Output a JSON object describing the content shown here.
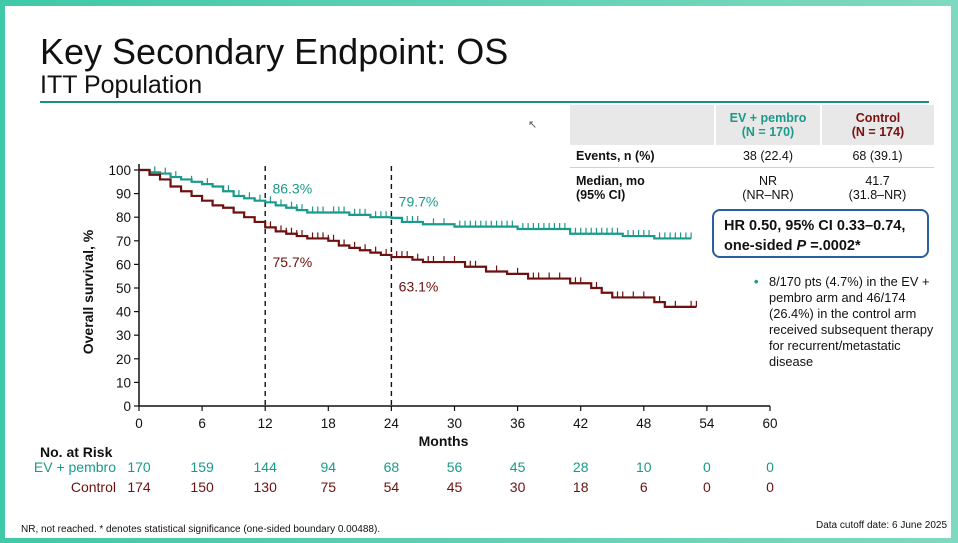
{
  "slide": {
    "title": "Key Secondary Endpoint: OS",
    "subtitle": "ITT Population",
    "cursor_icon": "cursor-arrow-icon",
    "footnote": "NR, not reached. * denotes statistical significance (one-sided boundary 0.00488).",
    "cutoff": "Data cutoff date: 6 June 2025"
  },
  "stats_table": {
    "headers": [
      "",
      "EV + pembro\n(N = 170)",
      "Control\n(N = 174)"
    ],
    "rows": [
      {
        "label": "Events, n (%)",
        "ev": "38 (22.4)",
        "control": "68 (39.1)"
      },
      {
        "label": "Median, mo\n(95% CI)",
        "ev": "NR\n(NR–NR)",
        "control": "41.7\n(31.8–NR)"
      }
    ]
  },
  "hr_box": {
    "line1": "HR 0.50, 95% CI 0.33–0.74,",
    "line2_prefix": "one-sided ",
    "line2_p": "P",
    "line2_suffix": " =.0002*"
  },
  "note": {
    "bullet": "•",
    "text": "8/170 pts (4.7%) in the EV + pembro arm and 46/174 (26.4%) in the control arm received subsequent therapy for recurrent/metastatic disease"
  },
  "colors": {
    "ev": "#1a9a8a",
    "control": "#6e1010",
    "rule": "#1a8f7f",
    "hr_border": "#2a5fa0"
  },
  "chart_data": {
    "type": "line",
    "title": "",
    "xlabel": "Months",
    "ylabel": "Overall survival, %",
    "xlim": [
      0,
      60
    ],
    "ylim": [
      0,
      100
    ],
    "xticks": [
      0,
      6,
      12,
      18,
      24,
      30,
      36,
      42,
      48,
      54,
      60
    ],
    "yticks": [
      0,
      10,
      20,
      30,
      40,
      50,
      60,
      70,
      80,
      90,
      100
    ],
    "reference_lines": [
      12,
      24
    ],
    "annotations": [
      {
        "text": "86.3%",
        "series": "EV + pembro",
        "x": 12.5,
        "y": 90
      },
      {
        "text": "79.7%",
        "series": "EV + pembro",
        "x": 24.5,
        "y": 84.5
      },
      {
        "text": "75.7%",
        "series": "Control",
        "x": 12.5,
        "y": 59
      },
      {
        "text": "63.1%",
        "series": "Control",
        "x": 24.5,
        "y": 48.5
      }
    ],
    "series": [
      {
        "name": "EV + pembro",
        "steps": [
          [
            0,
            100
          ],
          [
            1,
            99
          ],
          [
            2,
            98.5
          ],
          [
            3,
            97
          ],
          [
            4,
            96
          ],
          [
            5,
            95
          ],
          [
            6,
            94
          ],
          [
            7,
            93
          ],
          [
            8,
            91
          ],
          [
            9,
            89
          ],
          [
            10,
            88
          ],
          [
            11,
            87
          ],
          [
            12,
            86.3
          ],
          [
            13,
            85
          ],
          [
            14,
            84
          ],
          [
            15,
            83
          ],
          [
            16,
            82
          ],
          [
            18,
            82
          ],
          [
            20,
            81
          ],
          [
            22,
            80
          ],
          [
            24,
            79.7
          ],
          [
            25,
            78
          ],
          [
            27,
            77
          ],
          [
            30,
            76
          ],
          [
            36,
            75
          ],
          [
            41,
            73
          ],
          [
            46,
            72
          ],
          [
            49,
            71
          ],
          [
            52.5,
            71
          ]
        ],
        "censor_x": [
          1.5,
          2.5,
          3.5,
          5,
          6.5,
          8.5,
          9.5,
          10.5,
          11.5,
          12.5,
          13.5,
          14.5,
          15,
          15.5,
          16.5,
          17,
          17.5,
          18.5,
          19,
          19.5,
          20.5,
          21,
          21.5,
          22.5,
          23,
          23.5,
          25.5,
          26,
          26.5,
          28,
          29,
          30.5,
          31,
          31.5,
          32,
          32.5,
          33,
          33.5,
          34,
          34.5,
          35,
          35.5,
          36.5,
          37,
          37.5,
          38,
          38.5,
          39,
          39.5,
          40,
          40.5,
          41.5,
          42,
          42.5,
          43,
          43.5,
          44,
          44.5,
          45,
          45.5,
          46.5,
          47,
          47.5,
          48,
          48.5,
          49.5,
          50,
          50.5,
          51,
          51.5,
          52,
          52.5
        ]
      },
      {
        "name": "Control",
        "steps": [
          [
            0,
            100
          ],
          [
            1,
            98
          ],
          [
            2,
            96
          ],
          [
            3,
            93
          ],
          [
            4,
            91
          ],
          [
            5,
            89
          ],
          [
            6,
            87
          ],
          [
            7,
            85
          ],
          [
            8,
            84
          ],
          [
            9,
            82
          ],
          [
            10,
            80
          ],
          [
            11,
            78
          ],
          [
            12,
            75.7
          ],
          [
            13,
            74
          ],
          [
            14,
            73
          ],
          [
            15,
            72
          ],
          [
            16,
            71
          ],
          [
            18,
            70
          ],
          [
            19,
            68
          ],
          [
            20,
            67
          ],
          [
            21,
            66
          ],
          [
            22,
            65
          ],
          [
            23,
            64
          ],
          [
            24,
            63.1
          ],
          [
            26,
            62
          ],
          [
            27,
            61
          ],
          [
            31,
            59
          ],
          [
            33,
            57
          ],
          [
            35,
            56
          ],
          [
            37,
            54
          ],
          [
            41,
            52
          ],
          [
            43,
            50
          ],
          [
            44,
            48
          ],
          [
            45,
            46
          ],
          [
            49,
            44
          ],
          [
            50,
            42
          ],
          [
            53,
            42
          ]
        ],
        "censor_x": [
          12.5,
          13.5,
          14,
          14.5,
          15,
          15.5,
          16.5,
          17,
          17.5,
          18,
          18.5,
          19.5,
          20.5,
          21.5,
          22.5,
          23.5,
          24.5,
          25,
          25.5,
          26.5,
          27.5,
          28,
          29,
          30,
          31.5,
          32,
          34,
          36,
          37.5,
          38,
          39,
          40,
          41.5,
          42,
          43.5,
          45.5,
          46,
          47,
          48,
          49.5,
          51,
          52.5,
          53
        ]
      }
    ],
    "risk_table": {
      "title": "No. at Risk",
      "times": [
        0,
        6,
        12,
        18,
        24,
        30,
        36,
        42,
        48,
        54,
        60
      ],
      "rows": [
        {
          "name": "EV + pembro",
          "values": [
            "170",
            "159",
            "144",
            "94",
            "68",
            "56",
            "45",
            "28",
            "10",
            "0",
            "0"
          ]
        },
        {
          "name": "Control",
          "values": [
            "174",
            "150",
            "130",
            "75",
            "54",
            "45",
            "30",
            "18",
            "6",
            "0",
            "0"
          ]
        }
      ]
    }
  }
}
